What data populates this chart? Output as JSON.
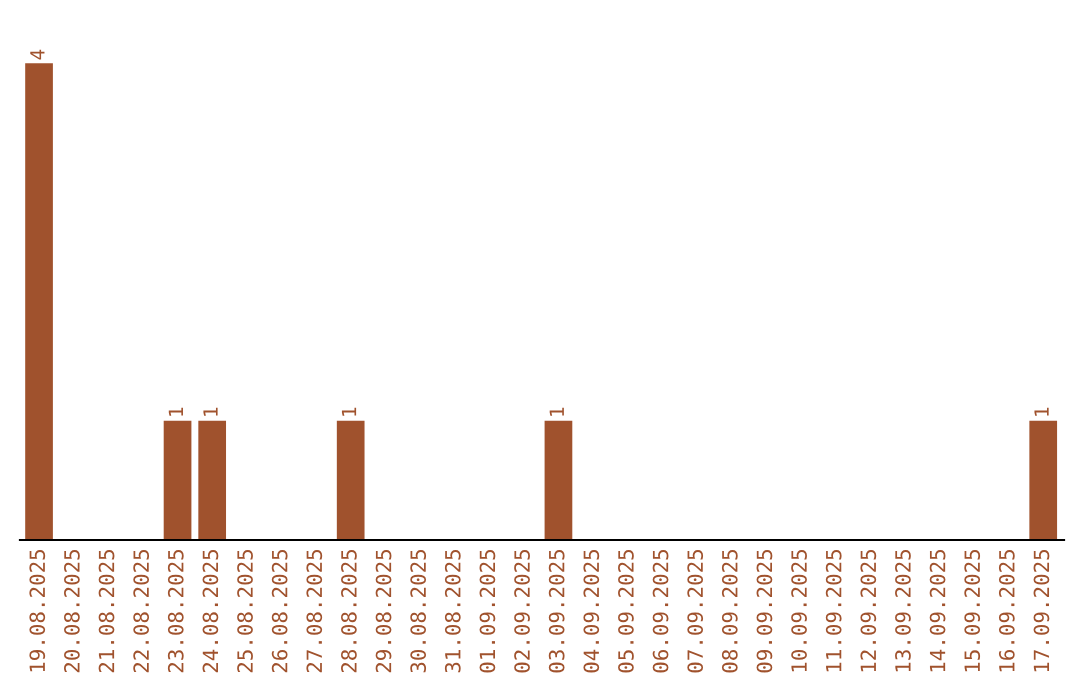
{
  "chart_data": {
    "type": "bar",
    "categories": [
      "19.08.2025",
      "20.08.2025",
      "21.08.2025",
      "22.08.2025",
      "23.08.2025",
      "24.08.2025",
      "25.08.2025",
      "26.08.2025",
      "27.08.2025",
      "28.08.2025",
      "29.08.2025",
      "30.08.2025",
      "31.08.2025",
      "01.09.2025",
      "02.09.2025",
      "03.09.2025",
      "04.09.2025",
      "05.09.2025",
      "06.09.2025",
      "07.09.2025",
      "08.09.2025",
      "09.09.2025",
      "10.09.2025",
      "11.09.2025",
      "12.09.2025",
      "13.09.2025",
      "14.09.2025",
      "15.09.2025",
      "16.09.2025",
      "17.09.2025"
    ],
    "values": [
      4,
      0,
      0,
      0,
      1,
      1,
      0,
      0,
      0,
      1,
      0,
      0,
      0,
      0,
      0,
      1,
      0,
      0,
      0,
      0,
      0,
      0,
      0,
      0,
      0,
      0,
      0,
      0,
      0,
      1
    ],
    "value_labels": [
      "4",
      null,
      null,
      null,
      "1",
      "1",
      null,
      null,
      null,
      "1",
      null,
      null,
      null,
      null,
      null,
      "1",
      null,
      null,
      null,
      null,
      null,
      null,
      null,
      null,
      null,
      null,
      null,
      null,
      null,
      "1"
    ],
    "color": "#a0522d",
    "tick_labels": "x",
    "grid": false,
    "legend": false
  }
}
